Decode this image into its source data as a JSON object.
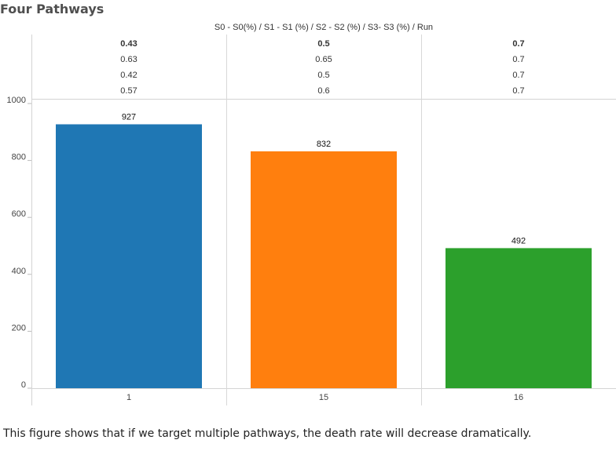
{
  "title": "Four Pathways",
  "caption": "This figure shows that if we target multiple pathways, the death rate will decrease dramatically.",
  "chart_data": {
    "type": "bar",
    "header_title": "S0 - S0(%)  /  S1 - S1 (%)  /  S2 - S2 (%)  /  S3- S3 (%)  /  Run",
    "categories": [
      "1",
      "15",
      "16"
    ],
    "values": [
      927,
      832,
      492
    ],
    "colors": [
      "#1f77b4",
      "#ff7f0e",
      "#2ca02c"
    ],
    "header_rows": [
      [
        "0.43",
        "0.5",
        "0.7"
      ],
      [
        "0.63",
        "0.65",
        "0.7"
      ],
      [
        "0.42",
        "0.5",
        "0.7"
      ],
      [
        "0.57",
        "0.6",
        "0.7"
      ]
    ],
    "header_bold_rows": [
      0
    ],
    "yticks": [
      0,
      200,
      400,
      600,
      800,
      1000
    ],
    "ylim": [
      0,
      1000
    ],
    "xlabel": "",
    "ylabel": "",
    "grid": false
  }
}
